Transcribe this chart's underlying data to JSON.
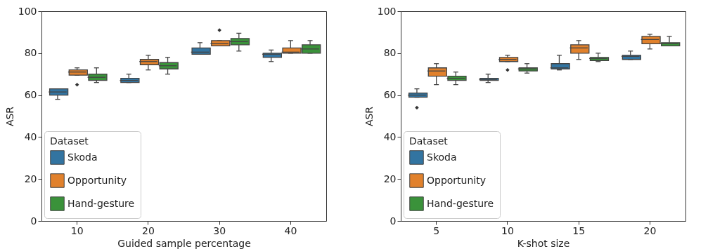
{
  "chart_data": [
    {
      "type": "box",
      "xlabel": "Guided sample percentage",
      "ylabel": "ASR",
      "legend_title": "Dataset",
      "legend": "bottom left",
      "grid": false,
      "ylim": [
        0,
        100
      ],
      "yticks": [
        0,
        20,
        40,
        60,
        80,
        100
      ],
      "categories": [
        "10",
        "20",
        "30",
        "40"
      ],
      "series": [
        {
          "name": "Skoda",
          "color": "#3274a1",
          "boxes": [
            {
              "low": 58,
              "q1": 60,
              "median": 61.5,
              "q3": 63,
              "high": 63
            },
            {
              "low": 66,
              "q1": 66,
              "median": 67,
              "q3": 68,
              "high": 70
            },
            {
              "low": 79.5,
              "q1": 79.5,
              "median": 80.5,
              "q3": 82.5,
              "high": 85
            },
            {
              "low": 76,
              "q1": 78,
              "median": 79.5,
              "q3": 80,
              "high": 81.5
            }
          ]
        },
        {
          "name": "Opportunity",
          "color": "#e1812c",
          "boxes": [
            {
              "low": 69.5,
              "q1": 69.5,
              "median": 71,
              "q3": 72,
              "high": 73,
              "outliers": [
                65
              ]
            },
            {
              "low": 72,
              "q1": 74.5,
              "median": 76,
              "q3": 77,
              "high": 79
            },
            {
              "low": 83.5,
              "q1": 83.5,
              "median": 84.5,
              "q3": 86,
              "high": 86,
              "outliers": [
                91
              ]
            },
            {
              "low": 80,
              "q1": 80,
              "median": 80.5,
              "q3": 82.5,
              "high": 86
            }
          ]
        },
        {
          "name": "Hand-gesture",
          "color": "#3a923a",
          "boxes": [
            {
              "low": 66,
              "q1": 67,
              "median": 68.5,
              "q3": 70,
              "high": 73
            },
            {
              "low": 70,
              "q1": 72.5,
              "median": 74,
              "q3": 75.5,
              "high": 78
            },
            {
              "low": 81,
              "q1": 84,
              "median": 85.5,
              "q3": 87,
              "high": 89.5
            },
            {
              "low": 80,
              "q1": 80,
              "median": 82,
              "q3": 84,
              "high": 86
            }
          ]
        }
      ]
    },
    {
      "type": "box",
      "xlabel": "K-shot size",
      "ylabel": "ASR",
      "legend_title": "Dataset",
      "legend": "bottom left",
      "grid": false,
      "ylim": [
        0,
        100
      ],
      "yticks": [
        0,
        20,
        40,
        60,
        80,
        100
      ],
      "categories": [
        "5",
        "10",
        "15",
        "20"
      ],
      "series": [
        {
          "name": "Skoda",
          "color": "#3274a1",
          "boxes": [
            {
              "low": 59,
              "q1": 59,
              "median": 60,
              "q3": 61,
              "high": 63,
              "outliers": [
                54
              ]
            },
            {
              "low": 66,
              "q1": 67,
              "median": 67.5,
              "q3": 68,
              "high": 70
            },
            {
              "low": 72,
              "q1": 72.5,
              "median": 73,
              "q3": 75,
              "high": 79
            },
            {
              "low": 77,
              "q1": 77,
              "median": 78.5,
              "q3": 79,
              "high": 81
            }
          ]
        },
        {
          "name": "Opportunity",
          "color": "#e1812c",
          "boxes": [
            {
              "low": 65,
              "q1": 69,
              "median": 71.5,
              "q3": 73,
              "high": 75
            },
            {
              "low": 76,
              "q1": 76,
              "median": 77,
              "q3": 78,
              "high": 79,
              "outliers": [
                72
              ]
            },
            {
              "low": 77,
              "q1": 80,
              "median": 82.5,
              "q3": 84,
              "high": 86
            },
            {
              "low": 82,
              "q1": 84.5,
              "median": 86.5,
              "q3": 88,
              "high": 89
            }
          ]
        },
        {
          "name": "Hand-gesture",
          "color": "#3a923a",
          "boxes": [
            {
              "low": 65,
              "q1": 67,
              "median": 68,
              "q3": 69,
              "high": 71
            },
            {
              "low": 70.5,
              "q1": 71.5,
              "median": 72.5,
              "q3": 73,
              "high": 75
            },
            {
              "low": 76,
              "q1": 76.5,
              "median": 77.5,
              "q3": 78,
              "high": 80
            },
            {
              "low": 83.5,
              "q1": 83.5,
              "median": 84.5,
              "q3": 85,
              "high": 88
            }
          ]
        }
      ]
    }
  ]
}
